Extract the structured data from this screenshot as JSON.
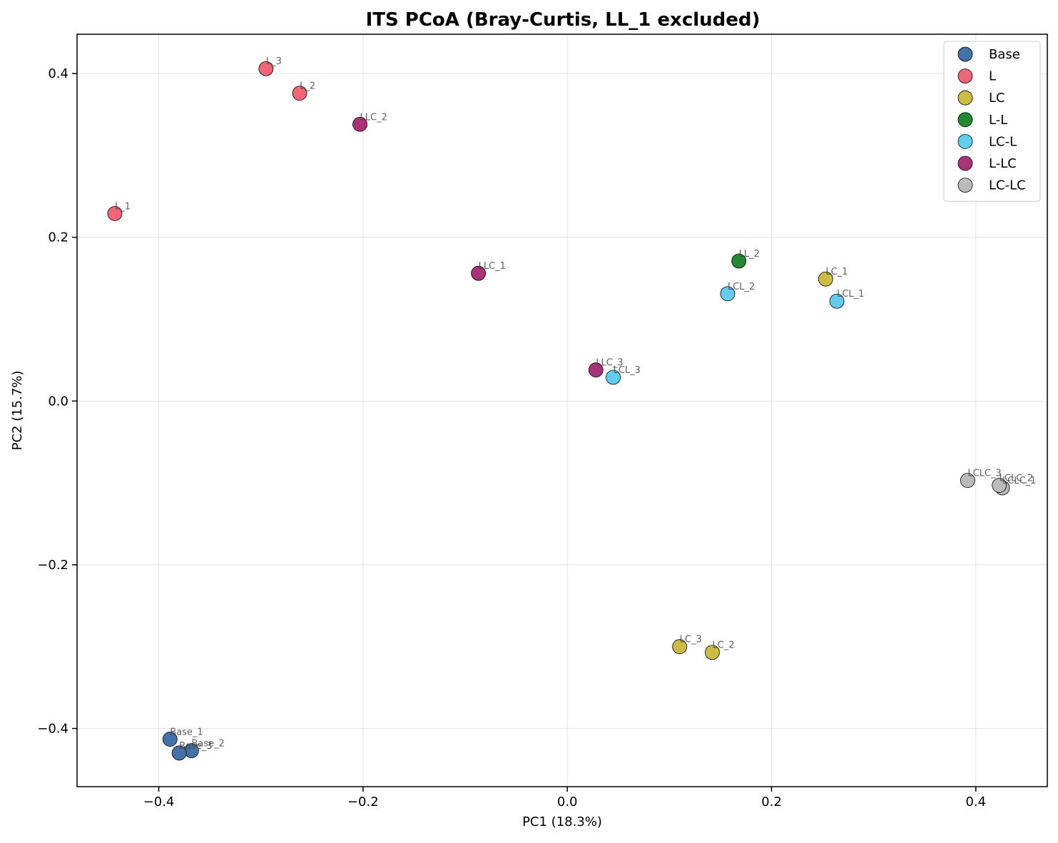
{
  "chart_data": {
    "type": "scatter",
    "title": "ITS PCoA (Bray-Curtis, LL_1 excluded)",
    "xlabel": "PC1 (18.3%)",
    "ylabel": "PC2 (15.7%)",
    "xlim": [
      -0.48,
      0.47
    ],
    "ylim": [
      -0.471,
      0.448
    ],
    "xticks": [
      -0.4,
      -0.2,
      0.0,
      0.2,
      0.4
    ],
    "xtick_labels": [
      "−0.4",
      "−0.2",
      "0.0",
      "0.2",
      "0.4"
    ],
    "yticks": [
      -0.4,
      -0.2,
      0.0,
      0.2,
      0.4
    ],
    "ytick_labels": [
      "−0.4",
      "−0.2",
      "0.0",
      "0.2",
      "0.4"
    ],
    "grid": true,
    "legend_position": "top-right",
    "series": [
      {
        "name": "Base",
        "color": "#4472a8",
        "points": [
          {
            "label": "Base_1",
            "x": -0.389,
            "y": -0.413
          },
          {
            "label": "Base_2",
            "x": -0.368,
            "y": -0.427
          },
          {
            "label": "Base_3",
            "x": -0.38,
            "y": -0.43
          }
        ]
      },
      {
        "name": "L",
        "color": "#ee6677",
        "points": [
          {
            "label": "L_1",
            "x": -0.443,
            "y": 0.229
          },
          {
            "label": "L_2",
            "x": -0.262,
            "y": 0.376
          },
          {
            "label": "L_3",
            "x": -0.295,
            "y": 0.406
          }
        ]
      },
      {
        "name": "LC",
        "color": "#ccbb44",
        "points": [
          {
            "label": "LC_1",
            "x": 0.253,
            "y": 0.149
          },
          {
            "label": "LC_2",
            "x": 0.142,
            "y": -0.307
          },
          {
            "label": "LC_3",
            "x": 0.11,
            "y": -0.3
          }
        ]
      },
      {
        "name": "L-L",
        "color": "#228833",
        "points": [
          {
            "label": "LL_2",
            "x": 0.168,
            "y": 0.171
          }
        ]
      },
      {
        "name": "LC-L",
        "color": "#66ccee",
        "points": [
          {
            "label": "LCL_1",
            "x": 0.264,
            "y": 0.122
          },
          {
            "label": "LCL_2",
            "x": 0.157,
            "y": 0.131
          },
          {
            "label": "LCL_3",
            "x": 0.045,
            "y": 0.029
          }
        ]
      },
      {
        "name": "L-LC",
        "color": "#aa3377",
        "points": [
          {
            "label": "LLC_1",
            "x": -0.087,
            "y": 0.156
          },
          {
            "label": "LLC_2",
            "x": -0.203,
            "y": 0.338
          },
          {
            "label": "LLC_3",
            "x": 0.028,
            "y": 0.038
          }
        ]
      },
      {
        "name": "LC-LC",
        "color": "#bbbbbb",
        "points": [
          {
            "label": "LCLC_1",
            "x": 0.426,
            "y": -0.106
          },
          {
            "label": "LCLC_2",
            "x": 0.423,
            "y": -0.103
          },
          {
            "label": "LCLC_3",
            "x": 0.392,
            "y": -0.097
          }
        ]
      }
    ]
  }
}
